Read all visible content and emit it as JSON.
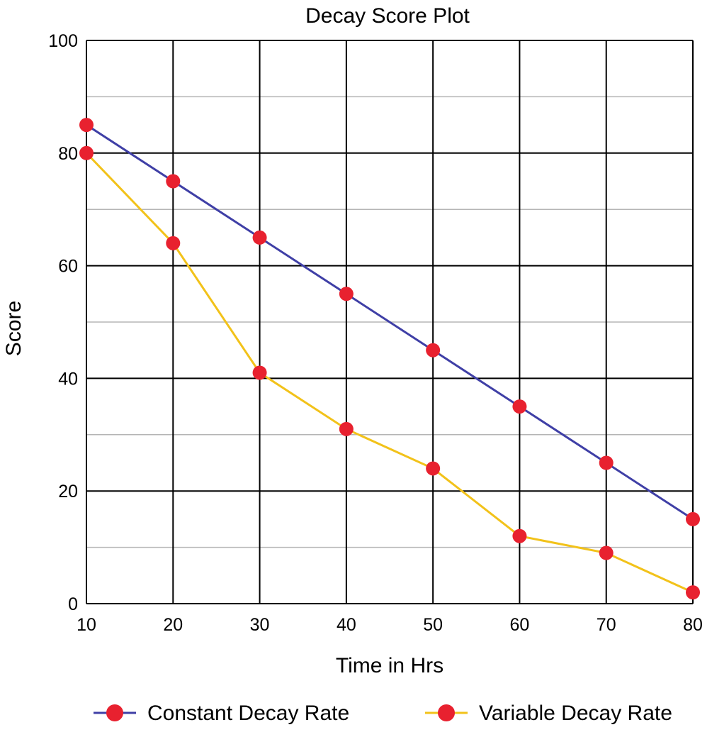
{
  "chart_data": {
    "type": "line",
    "title": "Decay Score Plot",
    "xlabel": "Time in Hrs",
    "ylabel": "Score",
    "x": [
      10,
      20,
      30,
      40,
      50,
      60,
      70,
      80
    ],
    "xlim": [
      10,
      80
    ],
    "ylim": [
      0,
      100
    ],
    "x_ticks": [
      "10",
      "20",
      "30",
      "40",
      "50",
      "60",
      "70",
      "80"
    ],
    "y_ticks": [
      "0",
      "20",
      "40",
      "60",
      "80",
      "100"
    ],
    "y_minor_step": 10,
    "grid": true,
    "legend_position": "bottom",
    "marker_color": "#e8212f",
    "series": [
      {
        "name": "Constant Decay Rate",
        "color": "#3f3fa6",
        "values": [
          85,
          75,
          65,
          55,
          45,
          35,
          25,
          15
        ]
      },
      {
        "name": "Variable Decay Rate",
        "color": "#f2c21a",
        "values": [
          80,
          64,
          41,
          31,
          24,
          12,
          9,
          2
        ]
      }
    ]
  }
}
